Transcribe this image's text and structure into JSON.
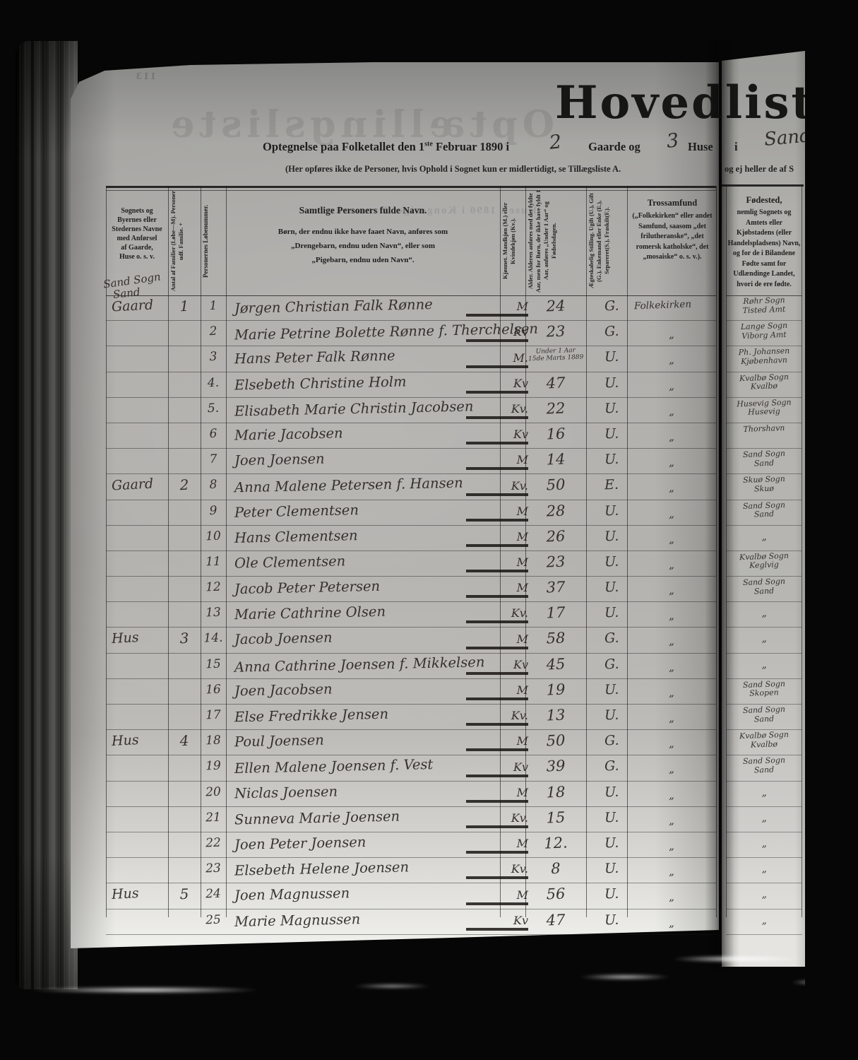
{
  "ghosts": {
    "page_number": "113",
    "title": "Optællingsliste",
    "line": "Huse i 1890 i Kongeriget Danmarks"
  },
  "header": {
    "title": "Hovedlist",
    "line_pre": "Optegnelse paa Folketallet den 1",
    "line_sup": "ste",
    "line_mid": " Februar 1890 i",
    "gaarde_value": "2",
    "gaarde_label": "Gaarde og",
    "huse_value": "3",
    "huse_label": "Huse",
    "i_label": "i",
    "place_value": "Sand",
    "note": "(Her opføres ikke de Personer, hvis Ophold i Sognet kun er midlertidigt, se Tillægsliste A.",
    "note_right": "og ej heller de af S"
  },
  "table": {
    "col_place": {
      "lines": [
        "Sognets og",
        "Byernes eller",
        "Stedernes Navne",
        "med Anførsel",
        "af Gaarde,",
        "Huse o. s. v."
      ],
      "hw_line1": "Sand Sogn",
      "hw_line2": "Sand"
    },
    "col_families": "Antal af Familier (Løbe—M). Personer udf. Familie. +",
    "col_person_no": "Personernes Løbenummer.",
    "col_name": {
      "title": "Samtlige Personers fulde Navn.",
      "sub": [
        "Børn, der endnu ikke have faaet Navn, anføres som",
        "„Drengebarn, endnu uden Navn“, eller som",
        "„Pigebarn, endnu uden Navn“."
      ]
    },
    "col_sex": "Kjønnet. Mandkjøn (M.) eller Kvindekjøn (Kv.).",
    "col_age": "Alder. Alderen anføres med det fyldte Aar, men for Børn, der ikke have fyldt 1 Aar, anføres „Under 1 Aar“ og Fødselsdagen.",
    "col_marital": "Ægteskabelig Stilling. Ugift (U.), Gift (G.), Enkemand eller Enke (E.), Separeret(S.), Fraskilt(F.).",
    "col_religion": {
      "title": "Trossamfund",
      "body": "(„Folkekirken“ eller andet Samfund, saasom „det frilutheranske“, „det romersk katholske“, det „mosaiske“ o. s. v.)."
    },
    "col_birthplace": {
      "title": "Fødested,",
      "body": "nemlig Sognets og Amtets eller Kjøbstadens (eller Handelspladsens) Navn, og for de i Bilandene Fødte samt for Udlændinge Landet, hvori de ere fødte."
    },
    "rows": [
      {
        "place": "Gaard",
        "family": "1",
        "no": "1",
        "name": "Jørgen Christian Falk Rønne",
        "sex": "M",
        "age": "24",
        "marital": "G.",
        "religion": "Folkekirken",
        "birth": [
          "Røhr Sogn",
          "Tisted Amt"
        ]
      },
      {
        "place": "",
        "family": "",
        "no": "2",
        "name": "Marie Petrine Bolette Rønne f. Therchelsen",
        "sex": "Kv",
        "age": "23",
        "marital": "G.",
        "religion": "„",
        "birth": [
          "Lange Sogn",
          "Viborg Amt"
        ]
      },
      {
        "place": "",
        "family": "",
        "no": "3",
        "name": "Hans Peter Falk Rønne",
        "sex": "M.",
        "age": "Under 1 Aar|15de Marts 1889",
        "marital": "U.",
        "religion": "„",
        "birth": [
          "Ph. Johansen",
          "Kjøbenhavn"
        ]
      },
      {
        "place": "",
        "family": "",
        "no": "4.",
        "name": "Elsebeth Christine Holm",
        "sex": "Kv",
        "age": "47",
        "marital": "U.",
        "religion": "„",
        "birth": [
          "Kvalbø Sogn",
          "Kvalbø"
        ]
      },
      {
        "place": "",
        "family": "",
        "no": "5.",
        "name": "Elisabeth Marie Christin Jacobsen",
        "sex": "Kv.",
        "age": "22",
        "marital": "U.",
        "religion": "„",
        "birth": [
          "Husevig Sogn",
          "Husevig"
        ]
      },
      {
        "place": "",
        "family": "",
        "no": "6",
        "name": "Marie Jacobsen",
        "sex": "Kv",
        "age": "16",
        "marital": "U.",
        "religion": "„",
        "birth": [
          "Thorshavn"
        ]
      },
      {
        "place": "",
        "family": "",
        "no": "7",
        "name": "Joen Joensen",
        "sex": "M",
        "age": "14",
        "marital": "U.",
        "religion": "„",
        "birth": [
          "Sand Sogn",
          "Sand"
        ]
      },
      {
        "place": "Gaard",
        "family": "2",
        "no": "8",
        "name": "Anna Malene Petersen f. Hansen",
        "sex": "Kv.",
        "age": "50",
        "marital": "E.",
        "religion": "„",
        "birth": [
          "Skuø Sogn",
          "Skuø"
        ]
      },
      {
        "place": "",
        "family": "",
        "no": "9",
        "name": "Peter Clementsen",
        "sex": "M",
        "age": "28",
        "marital": "U.",
        "religion": "„",
        "birth": [
          "Sand Sogn",
          "Sand"
        ]
      },
      {
        "place": "",
        "family": "",
        "no": "10",
        "name": "Hans Clementsen",
        "sex": "M",
        "age": "26",
        "marital": "U.",
        "religion": "„",
        "birth": [
          "„"
        ]
      },
      {
        "place": "",
        "family": "",
        "no": "11",
        "name": "Ole Clementsen",
        "sex": "M",
        "age": "23",
        "marital": "U.",
        "religion": "„",
        "birth": [
          "Kvalbø Sogn",
          "Keglvig"
        ]
      },
      {
        "place": "",
        "family": "",
        "no": "12",
        "name": "Jacob Peter Petersen",
        "sex": "M",
        "age": "37",
        "marital": "U.",
        "religion": "„",
        "birth": [
          "Sand Sogn",
          "Sand"
        ]
      },
      {
        "place": "",
        "family": "",
        "no": "13",
        "name": "Marie Cathrine Olsen",
        "sex": "Kv.",
        "age": "17",
        "marital": "U.",
        "religion": "„",
        "birth": [
          "„"
        ]
      },
      {
        "place": "Hus",
        "family": "3",
        "no": "14.",
        "name": "Jacob Joensen",
        "sex": "M",
        "age": "58",
        "marital": "G.",
        "religion": "„",
        "birth": [
          "„"
        ]
      },
      {
        "place": "",
        "family": "",
        "no": "15",
        "name": "Anna Cathrine Joensen f. Mikkelsen",
        "sex": "Kv",
        "age": "45",
        "marital": "G.",
        "religion": "„",
        "birth": [
          "„"
        ]
      },
      {
        "place": "",
        "family": "",
        "no": "16",
        "name": "Joen Jacobsen",
        "sex": "M",
        "age": "19",
        "marital": "U.",
        "religion": "„",
        "birth": [
          "Sand Sogn",
          "Skopen"
        ]
      },
      {
        "place": "",
        "family": "",
        "no": "17",
        "name": "Else Fredrikke Jensen",
        "sex": "Kv.",
        "age": "13",
        "marital": "U.",
        "religion": "„",
        "birth": [
          "Sand Sogn",
          "Sand"
        ]
      },
      {
        "place": "Hus",
        "family": "4",
        "no": "18",
        "name": "Poul Joensen",
        "sex": "M",
        "age": "50",
        "marital": "G.",
        "religion": "„",
        "birth": [
          "Kvalbø Sogn",
          "Kvalbø"
        ]
      },
      {
        "place": "",
        "family": "",
        "no": "19",
        "name": "Ellen Malene Joensen f. Vest",
        "sex": "Kv",
        "age": "39",
        "marital": "G.",
        "religion": "„",
        "birth": [
          "Sand Sogn",
          "Sand"
        ]
      },
      {
        "place": "",
        "family": "",
        "no": "20",
        "name": "Niclas Joensen",
        "sex": "M",
        "age": "18",
        "marital": "U.",
        "religion": "„",
        "birth": [
          "„"
        ]
      },
      {
        "place": "",
        "family": "",
        "no": "21",
        "name": "Sunneva Marie Joensen",
        "sex": "Kv.",
        "age": "15",
        "marital": "U.",
        "religion": "„",
        "birth": [
          "„"
        ]
      },
      {
        "place": "",
        "family": "",
        "no": "22",
        "name": "Joen Peter Joensen",
        "sex": "M",
        "age": "12.",
        "marital": "U.",
        "religion": "„",
        "birth": [
          "„"
        ]
      },
      {
        "place": "",
        "family": "",
        "no": "23",
        "name": "Elsebeth Helene Joensen",
        "sex": "Kv.",
        "age": "8",
        "marital": "U.",
        "religion": "„",
        "birth": [
          "„"
        ]
      },
      {
        "place": "Hus",
        "family": "5",
        "no": "24",
        "name": "Joen Magnussen",
        "sex": "M",
        "age": "56",
        "marital": "U.",
        "religion": "„",
        "birth": [
          "„"
        ]
      },
      {
        "place": "",
        "family": "",
        "no": "25",
        "name": "Marie Magnussen",
        "sex": "Kv",
        "age": "47",
        "marital": "U.",
        "religion": "„",
        "birth": [
          "„"
        ]
      }
    ]
  }
}
